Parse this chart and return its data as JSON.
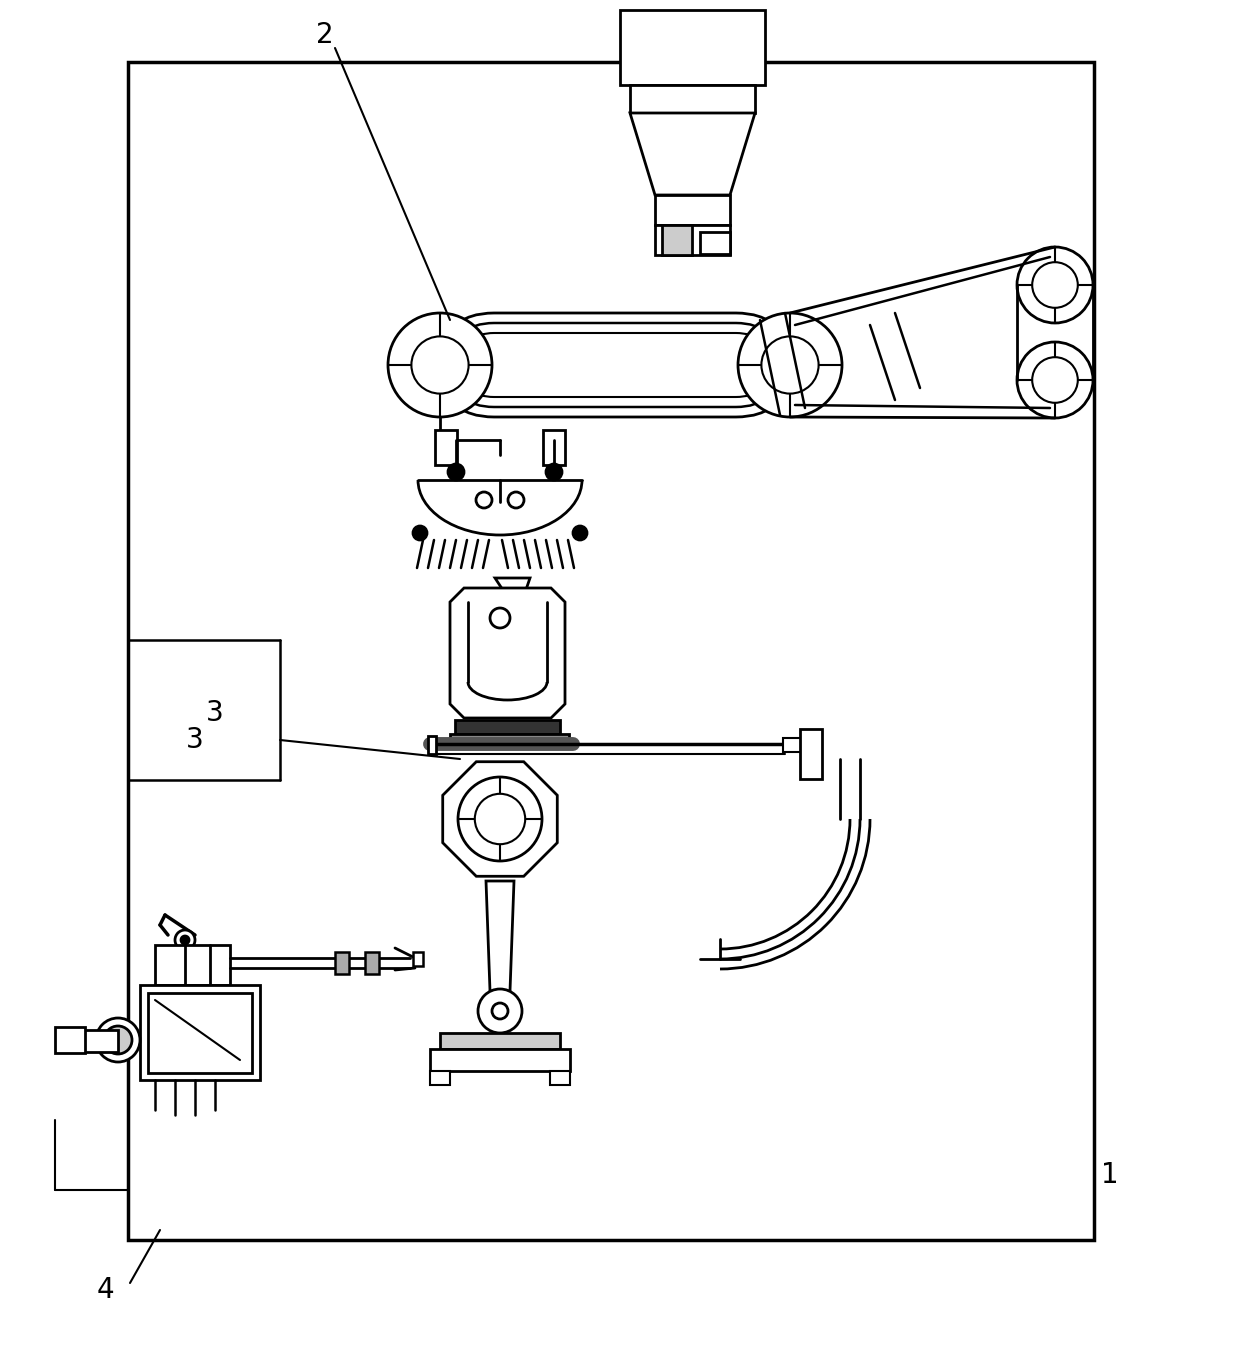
{
  "bg": "#ffffff",
  "lc": "#000000",
  "lw": 2.0,
  "figsize": [
    12.4,
    13.47
  ],
  "dpi": 100
}
